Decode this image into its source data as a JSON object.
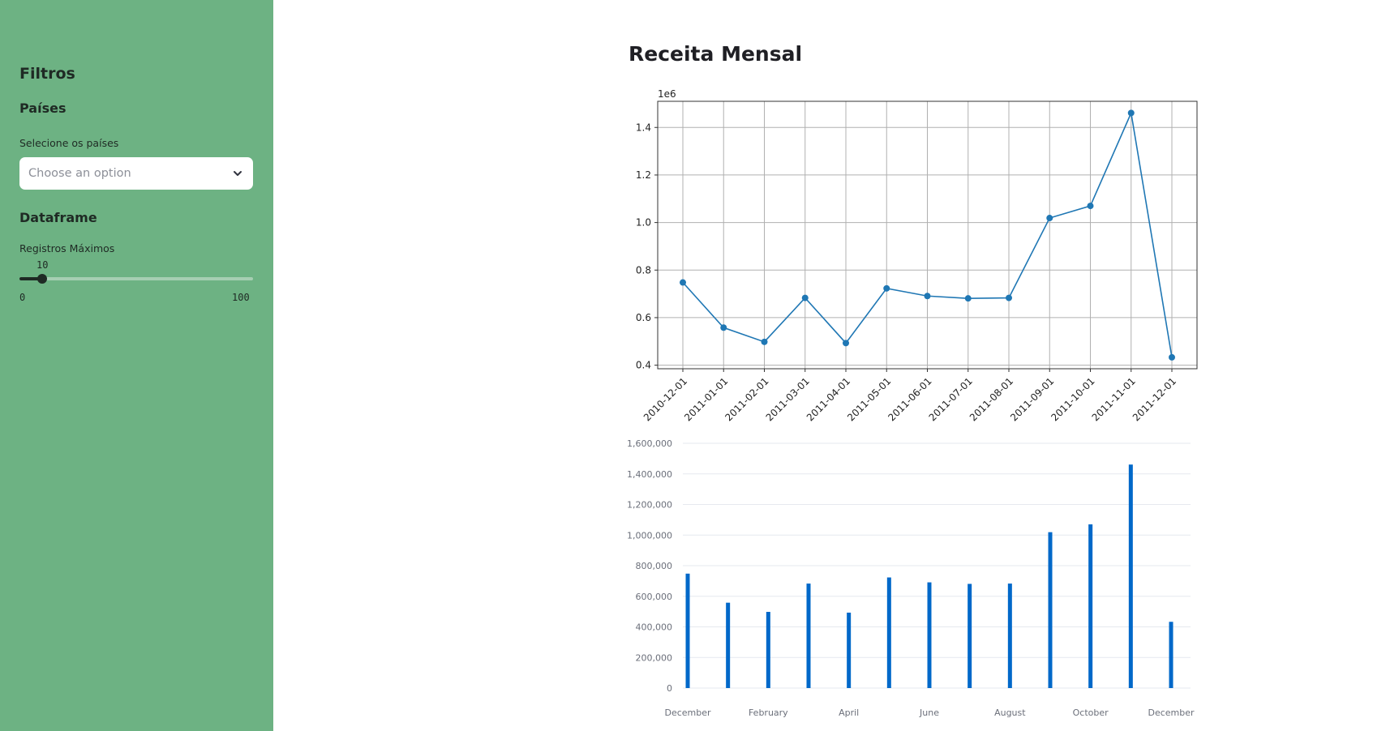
{
  "sidebar": {
    "title": "Filtros",
    "countries_section": "Países",
    "countries_label": "Selecione os países",
    "countries_placeholder": "Choose an option",
    "dataframe_section": "Dataframe",
    "max_records_label": "Registros Máximos",
    "max_records_value": "10",
    "max_records_min": "0",
    "max_records_max": "100",
    "chevron_icon": "chevron-down-icon"
  },
  "main": {
    "title": "Receita Mensal"
  },
  "chart_data": [
    {
      "type": "line",
      "x": [
        "2010-12-01",
        "2011-01-01",
        "2011-02-01",
        "2011-03-01",
        "2011-04-01",
        "2011-05-01",
        "2011-06-01",
        "2011-07-01",
        "2011-08-01",
        "2011-09-01",
        "2011-10-01",
        "2011-11-01",
        "2011-12-01"
      ],
      "values": [
        748000,
        558000,
        498000,
        683000,
        493000,
        723000,
        691000,
        681000,
        683000,
        1019000,
        1070000,
        1461000,
        433000
      ],
      "y_ticks": [
        0.4,
        0.6,
        0.8,
        1.0,
        1.2,
        1.4
      ],
      "y_tick_labels": [
        "0.4",
        "0.6",
        "0.8",
        "1.0",
        "1.2",
        "1.4"
      ],
      "ylim": [
        0.385,
        1.51
      ],
      "y_offset_label": "1e6",
      "grid": true,
      "color": "#1f77b4"
    },
    {
      "type": "bar",
      "x": [
        "2010-12-01",
        "2011-01-01",
        "2011-02-01",
        "2011-03-01",
        "2011-04-01",
        "2011-05-01",
        "2011-06-01",
        "2011-07-01",
        "2011-08-01",
        "2011-09-01",
        "2011-10-01",
        "2011-11-01",
        "2011-12-01"
      ],
      "values": [
        748000,
        558000,
        498000,
        683000,
        493000,
        723000,
        691000,
        681000,
        683000,
        1019000,
        1070000,
        1461000,
        433000
      ],
      "x_tick_labels": [
        "December",
        "February",
        "April",
        "June",
        "August",
        "October",
        "December"
      ],
      "y_ticks": [
        0,
        200000,
        400000,
        600000,
        800000,
        1000000,
        1200000,
        1400000,
        1600000
      ],
      "y_tick_labels": [
        "0",
        "200,000",
        "400,000",
        "600,000",
        "800,000",
        "1,000,000",
        "1,200,000",
        "1,400,000",
        "1,600,000"
      ],
      "ylim": [
        0,
        1600000
      ],
      "grid": true,
      "color": "#0068c9"
    }
  ]
}
